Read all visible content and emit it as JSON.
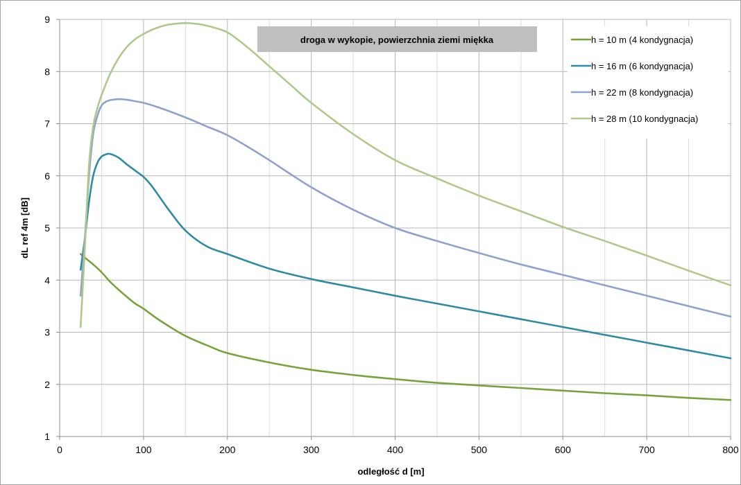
{
  "chart_data": {
    "type": "line",
    "title": "droga w wykopie, powierzchnia ziemi miękka",
    "xlabel": "odległość d [m]",
    "ylabel": "dL ref 4m [dB]",
    "xlim": [
      0,
      800
    ],
    "ylim": [
      1,
      9
    ],
    "xticks": [
      0,
      100,
      200,
      300,
      400,
      500,
      600,
      700,
      800
    ],
    "yticks": [
      1,
      2,
      3,
      4,
      5,
      6,
      7,
      8,
      9
    ],
    "x_minor_step": 50,
    "grid": true,
    "legend_position": "top-right",
    "series": [
      {
        "name": "h = 10 m (4 kondygnacja)",
        "color": "#77a33a",
        "x": [
          25,
          30,
          40,
          50,
          60,
          70,
          80,
          90,
          100,
          120,
          150,
          180,
          200,
          250,
          300,
          350,
          400,
          450,
          500,
          550,
          600,
          650,
          700,
          750,
          800
        ],
        "y": [
          4.5,
          4.43,
          4.3,
          4.15,
          3.97,
          3.82,
          3.68,
          3.55,
          3.45,
          3.22,
          2.93,
          2.72,
          2.6,
          2.42,
          2.28,
          2.18,
          2.1,
          2.03,
          1.98,
          1.93,
          1.88,
          1.83,
          1.79,
          1.74,
          1.7
        ]
      },
      {
        "name": "h = 16 m (6 kondygnacja)",
        "color": "#2e8ba5",
        "x": [
          25,
          30,
          35,
          40,
          45,
          50,
          55,
          60,
          70,
          80,
          90,
          100,
          110,
          130,
          150,
          175,
          200,
          250,
          300,
          350,
          400,
          450,
          500,
          550,
          600,
          650,
          700,
          750,
          800
        ],
        "y": [
          4.2,
          4.8,
          5.5,
          6.0,
          6.25,
          6.37,
          6.41,
          6.42,
          6.35,
          6.22,
          6.1,
          5.98,
          5.8,
          5.35,
          4.95,
          4.65,
          4.5,
          4.22,
          4.02,
          3.86,
          3.7,
          3.55,
          3.4,
          3.25,
          3.1,
          2.95,
          2.8,
          2.65,
          2.5
        ]
      },
      {
        "name": "h = 22 m (8 kondygnacja)",
        "color": "#8ea2d0",
        "x": [
          25,
          30,
          35,
          40,
          45,
          50,
          55,
          60,
          70,
          80,
          90,
          100,
          120,
          150,
          175,
          200,
          225,
          250,
          300,
          350,
          400,
          450,
          500,
          550,
          600,
          650,
          700,
          750,
          800
        ],
        "y": [
          3.7,
          4.8,
          6.0,
          6.8,
          7.15,
          7.35,
          7.42,
          7.45,
          7.47,
          7.46,
          7.43,
          7.4,
          7.3,
          7.12,
          6.95,
          6.78,
          6.55,
          6.3,
          5.78,
          5.35,
          5.0,
          4.75,
          4.52,
          4.3,
          4.1,
          3.9,
          3.7,
          3.5,
          3.3
        ]
      },
      {
        "name": "h = 28 m (10 kondygnacja)",
        "color": "#b0c98a",
        "x": [
          25,
          30,
          35,
          40,
          45,
          50,
          60,
          70,
          80,
          90,
          100,
          110,
          120,
          130,
          140,
          150,
          160,
          175,
          200,
          225,
          250,
          275,
          300,
          350,
          400,
          450,
          500,
          550,
          600,
          650,
          700,
          750,
          800
        ],
        "y": [
          3.1,
          4.6,
          6.2,
          6.95,
          7.3,
          7.55,
          7.95,
          8.25,
          8.47,
          8.62,
          8.72,
          8.8,
          8.86,
          8.9,
          8.92,
          8.93,
          8.92,
          8.88,
          8.75,
          8.45,
          8.1,
          7.75,
          7.4,
          6.8,
          6.3,
          5.95,
          5.62,
          5.32,
          5.02,
          4.75,
          4.47,
          4.18,
          3.9
        ]
      }
    ]
  }
}
